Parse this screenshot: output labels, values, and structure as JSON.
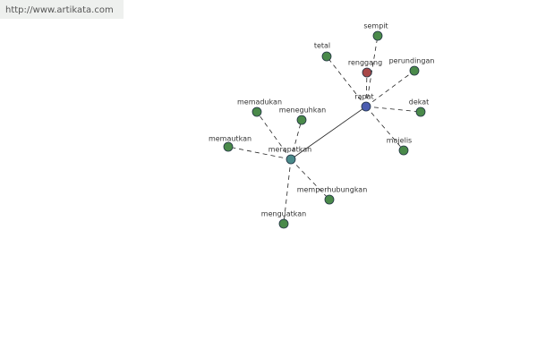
{
  "header": {
    "url": "http://www.artikata.com"
  },
  "nodes": [
    {
      "label": "rapat"
    },
    {
      "label": "merapatkan"
    },
    {
      "label": "renggang"
    },
    {
      "label": "sempit"
    },
    {
      "label": "tetal"
    },
    {
      "label": "perundingan"
    },
    {
      "label": "dekat"
    },
    {
      "label": "majelis"
    },
    {
      "label": "memadukan"
    },
    {
      "label": "meneguhkan"
    },
    {
      "label": "memautkan"
    },
    {
      "label": "memperhubungkan"
    },
    {
      "label": "menguatkan"
    }
  ]
}
